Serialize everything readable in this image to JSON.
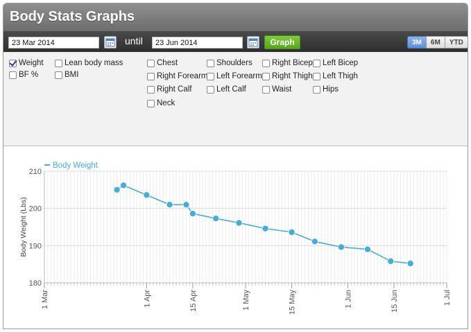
{
  "app": {
    "title": "Body Stats Graphs"
  },
  "toolbar": {
    "start_date": "23 Mar 2014",
    "until_label": "until",
    "end_date": "23 Jun 2014",
    "graph_label": "Graph",
    "ranges": [
      {
        "label": "3M",
        "active": true
      },
      {
        "label": "6M",
        "active": false
      },
      {
        "label": "YTD",
        "active": false
      }
    ]
  },
  "options": {
    "weight": {
      "label": "Weight",
      "checked": true
    },
    "bf": {
      "label": "BF %",
      "checked": false
    },
    "lean": {
      "label": "Lean body mass",
      "checked": false
    },
    "bmi": {
      "label": "BMI",
      "checked": false
    },
    "chest": {
      "label": "Chest",
      "checked": false
    },
    "shoulders": {
      "label": "Shoulders",
      "checked": false
    },
    "right_bicep": {
      "label": "Right Bicep",
      "checked": false
    },
    "left_bicep": {
      "label": "Left Bicep",
      "checked": false
    },
    "right_forearm": {
      "label": "Right Forearm",
      "checked": false
    },
    "left_forearm": {
      "label": "Left Forearm",
      "checked": false
    },
    "right_thigh": {
      "label": "Right Thigh",
      "checked": false
    },
    "left_thigh": {
      "label": "Left Thigh",
      "checked": false
    },
    "right_calf": {
      "label": "Right Calf",
      "checked": false
    },
    "left_calf": {
      "label": "Left Calf",
      "checked": false
    },
    "waist": {
      "label": "Waist",
      "checked": false
    },
    "hips": {
      "label": "Hips",
      "checked": false
    },
    "neck": {
      "label": "Neck",
      "checked": false
    }
  },
  "colors": {
    "series": "#4aabd5",
    "accent_green": "#6cbb2c"
  },
  "chart_data": {
    "type": "line",
    "ylabel": "Body Weight (Lbs)",
    "xlabel": "",
    "legend": "top-left",
    "grid": true,
    "ylim": [
      180,
      210
    ],
    "yticks": [
      180,
      190,
      200,
      210
    ],
    "xlim": [
      "2014-03-01",
      "2014-07-01"
    ],
    "xticks": [
      {
        "date": "2014-03-01",
        "label": "1 Mar"
      },
      {
        "date": "2014-04-01",
        "label": "1 Apr"
      },
      {
        "date": "2014-04-15",
        "label": "15 Apr"
      },
      {
        "date": "2014-05-01",
        "label": "1 May"
      },
      {
        "date": "2014-05-15",
        "label": "15 May"
      },
      {
        "date": "2014-06-01",
        "label": "1 Jun"
      },
      {
        "date": "2014-06-15",
        "label": "15 Jun"
      },
      {
        "date": "2014-07-01",
        "label": "1 Jul"
      }
    ],
    "series": [
      {
        "name": "Body Weight",
        "points": [
          {
            "x": "2014-03-23",
            "y": 205.0
          },
          {
            "x": "2014-03-25",
            "y": 206.2
          },
          {
            "x": "2014-04-01",
            "y": 203.6
          },
          {
            "x": "2014-04-08",
            "y": 201.0
          },
          {
            "x": "2014-04-13",
            "y": 201.0
          },
          {
            "x": "2014-04-15",
            "y": 198.6
          },
          {
            "x": "2014-04-22",
            "y": 197.3
          },
          {
            "x": "2014-04-29",
            "y": 196.1
          },
          {
            "x": "2014-05-07",
            "y": 194.6
          },
          {
            "x": "2014-05-15",
            "y": 193.6
          },
          {
            "x": "2014-05-22",
            "y": 191.1
          },
          {
            "x": "2014-05-30",
            "y": 189.6
          },
          {
            "x": "2014-06-07",
            "y": 189.0
          },
          {
            "x": "2014-06-14",
            "y": 185.8
          },
          {
            "x": "2014-06-20",
            "y": 185.2
          }
        ]
      }
    ]
  }
}
